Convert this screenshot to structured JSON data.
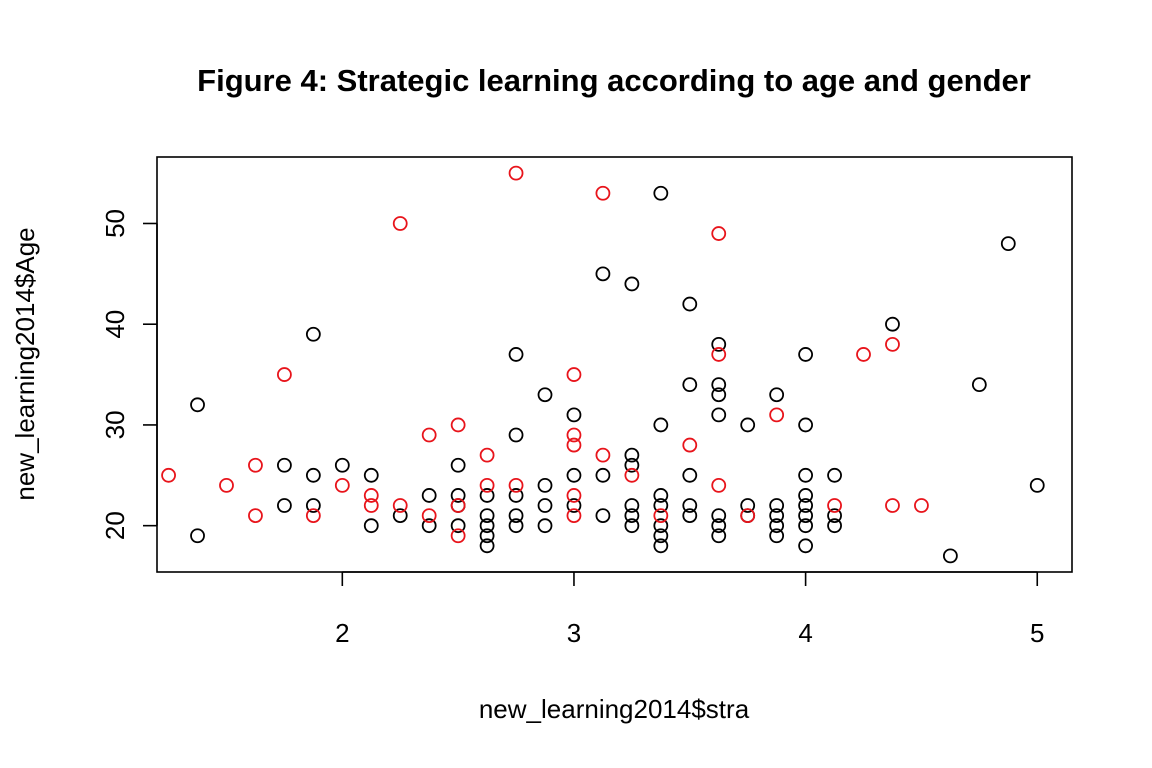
{
  "chart_data": {
    "type": "scatter",
    "title": "Figure 4: Strategic learning according to age and gender",
    "xlabel": "new_learning2014$stra",
    "ylabel": "new_learning2014$Age",
    "xlim": [
      1.2,
      5.15
    ],
    "ylim": [
      15.4,
      56.6
    ],
    "xticks": [
      2,
      3,
      4,
      5
    ],
    "yticks": [
      20,
      30,
      40,
      50
    ],
    "grid": false,
    "legend": "none",
    "colors": {
      "black": "#000000",
      "red": "#e8141b"
    },
    "series": [
      {
        "color": "#000000",
        "points": [
          [
            1.375,
            32
          ],
          [
            1.375,
            19
          ],
          [
            1.75,
            26
          ],
          [
            1.75,
            22
          ],
          [
            1.875,
            39
          ],
          [
            1.875,
            25
          ],
          [
            1.875,
            22
          ],
          [
            2.0,
            26
          ],
          [
            2.125,
            25
          ],
          [
            2.125,
            20
          ],
          [
            2.25,
            21
          ],
          [
            2.375,
            23
          ],
          [
            2.375,
            20
          ],
          [
            2.5,
            26
          ],
          [
            2.5,
            23
          ],
          [
            2.5,
            20
          ],
          [
            2.5,
            22
          ],
          [
            2.625,
            23
          ],
          [
            2.625,
            21
          ],
          [
            2.625,
            20
          ],
          [
            2.625,
            19
          ],
          [
            2.625,
            18
          ],
          [
            2.75,
            37
          ],
          [
            2.75,
            29
          ],
          [
            2.75,
            23
          ],
          [
            2.75,
            21
          ],
          [
            2.75,
            20
          ],
          [
            2.875,
            33
          ],
          [
            2.875,
            24
          ],
          [
            2.875,
            22
          ],
          [
            2.875,
            20
          ],
          [
            3.0,
            31
          ],
          [
            3.0,
            25
          ],
          [
            3.0,
            22
          ],
          [
            3.125,
            45
          ],
          [
            3.125,
            25
          ],
          [
            3.125,
            21
          ],
          [
            3.25,
            44
          ],
          [
            3.25,
            27
          ],
          [
            3.25,
            26
          ],
          [
            3.25,
            22
          ],
          [
            3.25,
            21
          ],
          [
            3.25,
            20
          ],
          [
            3.375,
            53
          ],
          [
            3.375,
            30
          ],
          [
            3.375,
            23
          ],
          [
            3.375,
            22
          ],
          [
            3.375,
            20
          ],
          [
            3.375,
            19
          ],
          [
            3.375,
            18
          ],
          [
            3.5,
            42
          ],
          [
            3.5,
            34
          ],
          [
            3.5,
            25
          ],
          [
            3.5,
            22
          ],
          [
            3.5,
            21
          ],
          [
            3.625,
            38
          ],
          [
            3.625,
            34
          ],
          [
            3.625,
            33
          ],
          [
            3.625,
            31
          ],
          [
            3.625,
            21
          ],
          [
            3.625,
            20
          ],
          [
            3.625,
            19
          ],
          [
            3.75,
            30
          ],
          [
            3.75,
            22
          ],
          [
            3.75,
            21
          ],
          [
            3.875,
            33
          ],
          [
            3.875,
            22
          ],
          [
            3.875,
            21
          ],
          [
            3.875,
            20
          ],
          [
            3.875,
            19
          ],
          [
            4.0,
            37
          ],
          [
            4.0,
            30
          ],
          [
            4.0,
            25
          ],
          [
            4.0,
            23
          ],
          [
            4.0,
            22
          ],
          [
            4.0,
            21
          ],
          [
            4.0,
            20
          ],
          [
            4.0,
            18
          ],
          [
            4.125,
            25
          ],
          [
            4.125,
            21
          ],
          [
            4.125,
            20
          ],
          [
            4.375,
            40
          ],
          [
            4.625,
            17
          ],
          [
            4.75,
            34
          ],
          [
            4.875,
            48
          ],
          [
            5.0,
            24
          ]
        ]
      },
      {
        "color": "#e8141b",
        "points": [
          [
            1.25,
            25
          ],
          [
            1.5,
            24
          ],
          [
            1.625,
            26
          ],
          [
            1.625,
            21
          ],
          [
            1.75,
            35
          ],
          [
            1.875,
            21
          ],
          [
            2.0,
            24
          ],
          [
            2.125,
            23
          ],
          [
            2.125,
            22
          ],
          [
            2.25,
            50
          ],
          [
            2.25,
            22
          ],
          [
            2.375,
            29
          ],
          [
            2.375,
            21
          ],
          [
            2.5,
            30
          ],
          [
            2.5,
            22
          ],
          [
            2.5,
            19
          ],
          [
            2.625,
            27
          ],
          [
            2.625,
            24
          ],
          [
            2.75,
            55
          ],
          [
            2.75,
            24
          ],
          [
            3.0,
            35
          ],
          [
            3.0,
            29
          ],
          [
            3.0,
            28
          ],
          [
            3.0,
            23
          ],
          [
            3.0,
            21
          ],
          [
            3.125,
            53
          ],
          [
            3.125,
            27
          ],
          [
            3.25,
            25
          ],
          [
            3.375,
            21
          ],
          [
            3.5,
            28
          ],
          [
            3.625,
            49
          ],
          [
            3.625,
            37
          ],
          [
            3.625,
            24
          ],
          [
            3.75,
            21
          ],
          [
            3.875,
            31
          ],
          [
            4.125,
            22
          ],
          [
            4.25,
            37
          ],
          [
            4.375,
            38
          ],
          [
            4.375,
            22
          ],
          [
            4.5,
            22
          ]
        ]
      }
    ]
  }
}
